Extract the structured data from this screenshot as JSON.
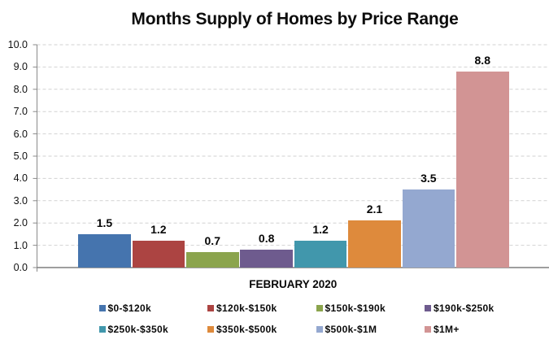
{
  "page": {
    "background_color": "#ffffff",
    "kind": "excel-style clustered bar chart image"
  },
  "chart_data": {
    "type": "bar",
    "title": "Months Supply of Homes by Price Range",
    "xlabel": "FEBRUARY 2020",
    "ylabel": "",
    "categories": [
      "$0-$120k",
      "$120k-$150k",
      "$150k-$190k",
      "$190k-$250k",
      "$250k-$350k",
      "$350k-$500k",
      "$500k-$1M",
      "$1M+"
    ],
    "values": [
      1.5,
      1.2,
      0.7,
      0.8,
      1.2,
      2.1,
      3.5,
      8.8
    ],
    "value_labels": [
      "1.5",
      "1.2",
      "0.7",
      "0.8",
      "1.2",
      "2.1",
      "3.5",
      "8.8"
    ],
    "series_colors": [
      "#4574AE",
      "#AC4442",
      "#8BA44D",
      "#6E5B8E",
      "#4197AC",
      "#DE8A3C",
      "#94A8D0",
      "#D29494"
    ],
    "ylim": [
      0,
      10
    ],
    "ytick_step": 1,
    "ytick_labels": [
      "0.0",
      "1.0",
      "2.0",
      "3.0",
      "4.0",
      "5.0",
      "6.0",
      "7.0",
      "8.0",
      "9.0",
      "10.0"
    ],
    "grid": "horizontal dashed gridlines on",
    "gridline_color": "#d2d2d2",
    "axis_line_color": "#8a8a8a",
    "text_color": "#0a0a0a",
    "legend_position": "bottom, 2 rows x 4 columns",
    "legend_entries": [
      "$0-$120k",
      "$120k-$150k",
      "$150k-$190k",
      "$190k-$250k",
      "$250k-$350k",
      "$350k-$500k",
      "$500k-$1M",
      "$1M+"
    ]
  }
}
